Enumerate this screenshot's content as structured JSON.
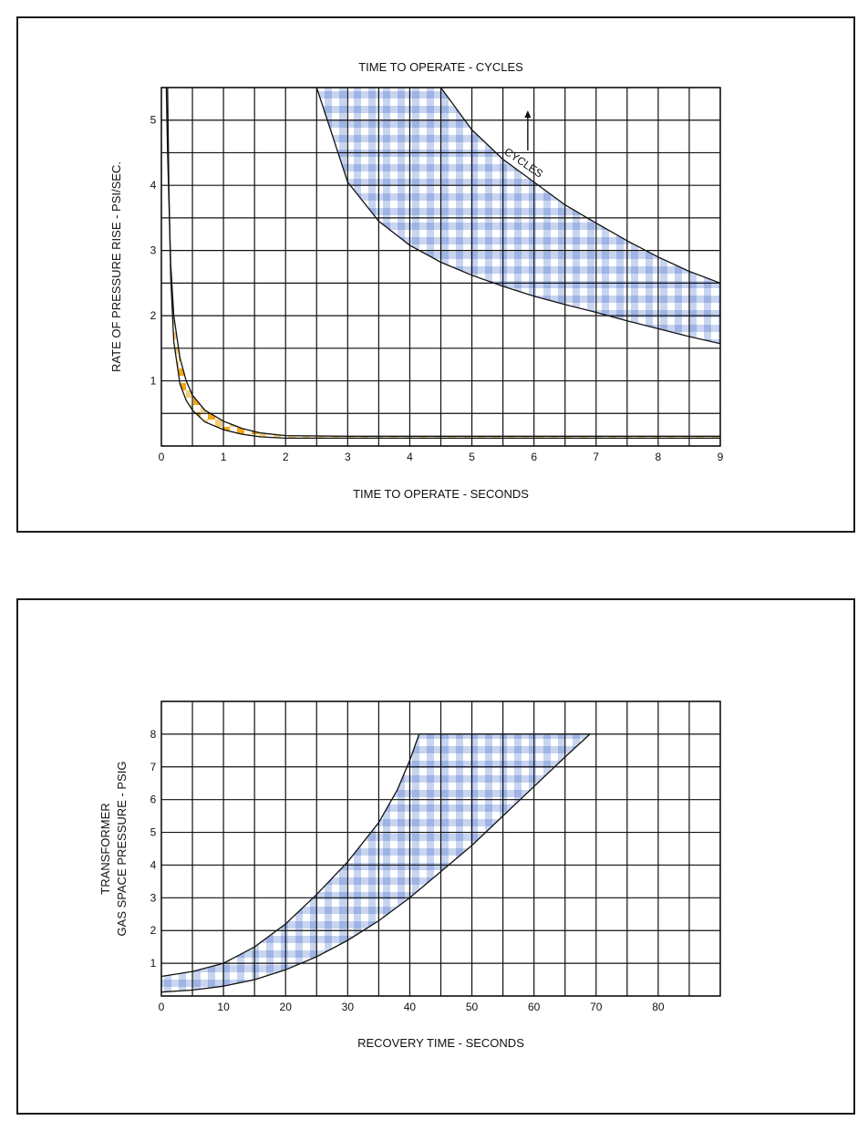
{
  "chart_data": [
    {
      "type": "area",
      "title": "TIME TO OPERATE - CYCLES",
      "xlabel": "TIME TO OPERATE - SECONDS",
      "ylabel": "RATE OF PRESSURE RISE - PSI/SEC.",
      "xlim": [
        0,
        9
      ],
      "ylim": [
        0,
        5.5
      ],
      "x_ticks": [
        "0",
        "1",
        "2",
        "3",
        "4",
        "5",
        "6",
        "7",
        "8",
        "9"
      ],
      "y_ticks": [
        "1",
        "2",
        "3",
        "4",
        "5"
      ],
      "grid": true,
      "annotations": [
        "CYCLES"
      ],
      "series": [
        {
          "band": "seconds",
          "fill": "orange checker",
          "upper": [
            [
              0.08,
              5.5
            ],
            [
              0.1,
              4.5
            ],
            [
              0.15,
              2.8
            ],
            [
              0.2,
              2.0
            ],
            [
              0.3,
              1.35
            ],
            [
              0.4,
              1.0
            ],
            [
              0.5,
              0.78
            ],
            [
              0.7,
              0.55
            ],
            [
              1.0,
              0.38
            ],
            [
              1.3,
              0.27
            ],
            [
              1.6,
              0.2
            ],
            [
              2.0,
              0.16
            ],
            [
              3.0,
              0.15
            ],
            [
              5.0,
              0.15
            ],
            [
              9.0,
              0.15
            ]
          ],
          "lower": [
            [
              0.1,
              5.5
            ],
            [
              0.12,
              4.0
            ],
            [
              0.15,
              2.6
            ],
            [
              0.2,
              1.6
            ],
            [
              0.3,
              0.95
            ],
            [
              0.4,
              0.7
            ],
            [
              0.5,
              0.55
            ],
            [
              0.7,
              0.37
            ],
            [
              1.0,
              0.25
            ],
            [
              1.3,
              0.18
            ],
            [
              1.6,
              0.14
            ],
            [
              2.0,
              0.12
            ],
            [
              3.0,
              0.12
            ],
            [
              5.0,
              0.12
            ],
            [
              9.0,
              0.12
            ]
          ]
        },
        {
          "band": "cycles",
          "fill": "blue checker",
          "upper": [
            [
              4.5,
              5.5
            ],
            [
              5.0,
              4.85
            ],
            [
              5.5,
              4.4
            ],
            [
              6.0,
              4.05
            ],
            [
              6.5,
              3.7
            ],
            [
              7.0,
              3.42
            ],
            [
              7.5,
              3.15
            ],
            [
              8.0,
              2.9
            ],
            [
              8.5,
              2.68
            ],
            [
              9.0,
              2.5
            ]
          ],
          "lower": [
            [
              2.5,
              5.5
            ],
            [
              3.0,
              4.05
            ],
            [
              3.5,
              3.45
            ],
            [
              4.0,
              3.08
            ],
            [
              4.5,
              2.82
            ],
            [
              5.0,
              2.62
            ],
            [
              5.5,
              2.45
            ],
            [
              6.0,
              2.3
            ],
            [
              6.5,
              2.17
            ],
            [
              7.0,
              2.05
            ],
            [
              7.5,
              1.92
            ],
            [
              8.0,
              1.8
            ],
            [
              8.5,
              1.68
            ],
            [
              9.0,
              1.57
            ]
          ]
        }
      ]
    },
    {
      "type": "area",
      "title": "",
      "xlabel": "RECOVERY TIME - SECONDS",
      "ylabel": [
        "TRANSFORMER",
        "GAS SPACE PRESSURE - PSIG"
      ],
      "xlim": [
        0,
        90
      ],
      "ylim": [
        0,
        9
      ],
      "x_ticks": [
        "0",
        "10",
        "20",
        "30",
        "40",
        "50",
        "60",
        "70",
        "80"
      ],
      "y_ticks": [
        "1",
        "2",
        "3",
        "4",
        "5",
        "6",
        "7",
        "8"
      ],
      "grid": true,
      "series": [
        {
          "band": "recovery",
          "fill": "blue checker",
          "upper": [
            [
              0,
              0.6
            ],
            [
              5,
              0.75
            ],
            [
              10,
              1.0
            ],
            [
              15,
              1.5
            ],
            [
              20,
              2.2
            ],
            [
              25,
              3.1
            ],
            [
              30,
              4.1
            ],
            [
              35,
              5.3
            ],
            [
              38,
              6.3
            ],
            [
              40,
              7.2
            ],
            [
              41.5,
              8.0
            ]
          ],
          "lower": [
            [
              0,
              0.12
            ],
            [
              5,
              0.18
            ],
            [
              10,
              0.3
            ],
            [
              15,
              0.5
            ],
            [
              20,
              0.8
            ],
            [
              25,
              1.2
            ],
            [
              30,
              1.7
            ],
            [
              35,
              2.3
            ],
            [
              40,
              3.0
            ],
            [
              45,
              3.8
            ],
            [
              50,
              4.6
            ],
            [
              55,
              5.5
            ],
            [
              60,
              6.4
            ],
            [
              65,
              7.3
            ],
            [
              69,
              8.0
            ]
          ]
        }
      ]
    }
  ]
}
